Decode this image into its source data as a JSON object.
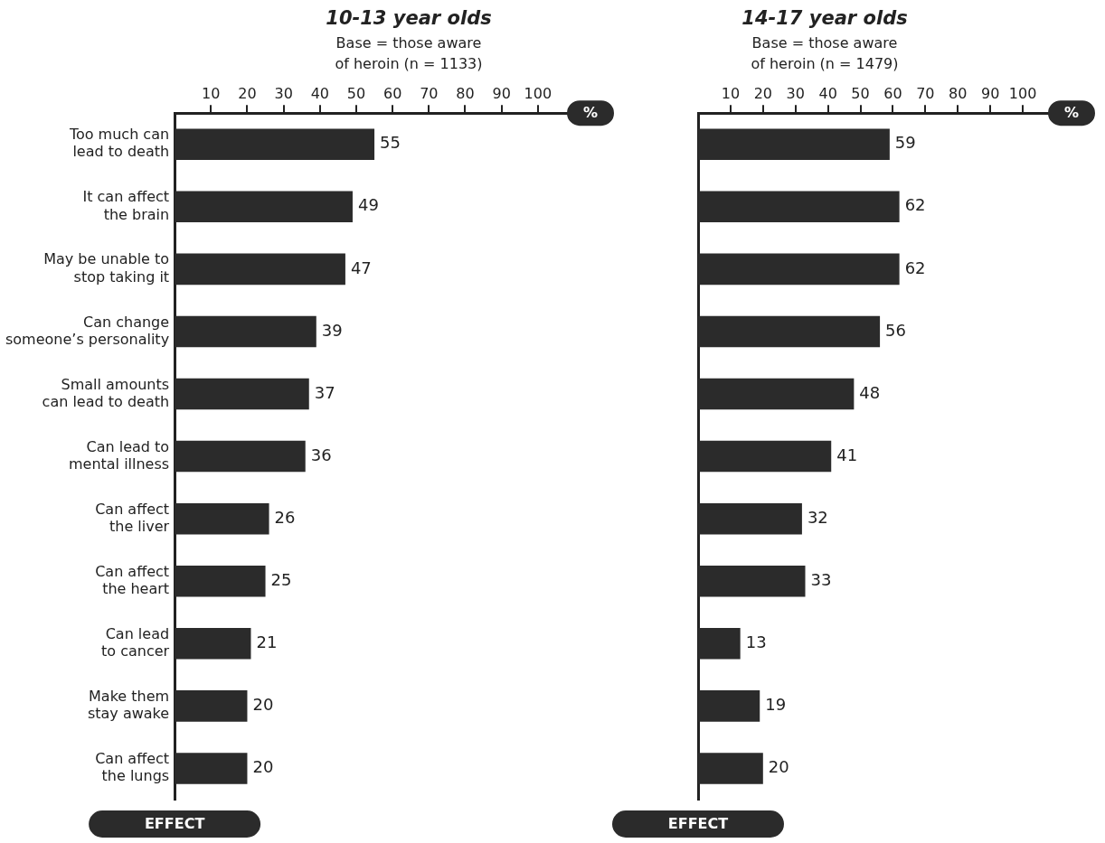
{
  "chart_data": [
    {
      "type": "bar",
      "orientation": "horizontal",
      "title": "10-13 year olds",
      "subtitle": "Base = those aware of heroin (n = 1133)",
      "xlabel": "%",
      "ylabel": "EFFECT",
      "categories": [
        "Too much can\nlead to death",
        "It can affect\nthe brain",
        "May be unable to\nstop taking it",
        "Can change\nsomeone’s personality",
        "Small amounts\ncan lead to death",
        "Can lead to\nmental illness",
        "Can affect\nthe liver",
        "Can affect\nthe heart",
        "Can lead\nto cancer",
        "Make them\nstay awake",
        "Can affect\nthe lungs"
      ],
      "values": [
        55,
        49,
        47,
        39,
        37,
        36,
        26,
        25,
        21,
        20,
        20
      ],
      "color": "#2b2b2b",
      "xlim": [
        0,
        110
      ],
      "xticks": [
        10,
        20,
        30,
        40,
        50,
        60,
        70,
        80,
        90,
        100
      ],
      "grid": false,
      "data_labels": true
    },
    {
      "type": "bar",
      "orientation": "horizontal",
      "title": "14-17 year olds",
      "subtitle": "Base = those aware of heroin (n = 1479)",
      "xlabel": "%",
      "ylabel": "EFFECT",
      "categories": [
        null,
        null,
        null,
        null,
        null,
        null,
        null,
        null,
        null,
        null,
        null
      ],
      "values": [
        59,
        62,
        62,
        56,
        48,
        41,
        32,
        33,
        13,
        19,
        20
      ],
      "color": "#2b2b2b",
      "xlim": [
        0,
        110
      ],
      "xticks": [
        10,
        20,
        30,
        40,
        50,
        60,
        70,
        80,
        90,
        100
      ],
      "grid": false,
      "data_labels": true
    }
  ]
}
